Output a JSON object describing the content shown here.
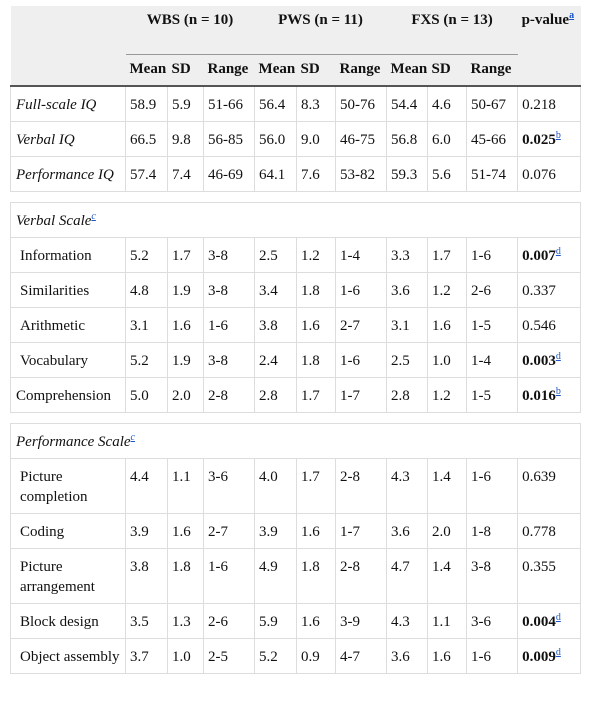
{
  "groups": [
    {
      "label": "WBS (n = 10)"
    },
    {
      "label": "PWS (n = 11)"
    },
    {
      "label": "FXS (n = 13)"
    }
  ],
  "pvalue_header": {
    "label": "p-value",
    "footnote": "a"
  },
  "subheaders": [
    "Mean",
    "SD",
    "Range",
    "Mean",
    "SD",
    "Range",
    "Mean",
    "SD",
    "Range"
  ],
  "rows": [
    {
      "label": "Full-scale IQ",
      "italic": true,
      "indent": false,
      "cells": [
        "58.9",
        "5.9",
        "51-66",
        "56.4",
        "8.3",
        "50-76",
        "54.4",
        "4.6",
        "50-67"
      ],
      "p": "0.218",
      "p_bold": false,
      "p_fn": ""
    },
    {
      "label": "Verbal IQ",
      "italic": true,
      "indent": false,
      "cells": [
        "66.5",
        "9.8",
        "56-85",
        "56.0",
        "9.0",
        "46-75",
        "56.8",
        "6.0",
        "45-66"
      ],
      "p": "0.025",
      "p_bold": true,
      "p_fn": "b"
    },
    {
      "label": "Performance IQ",
      "italic": true,
      "indent": false,
      "cells": [
        "57.4",
        "7.4",
        "46-69",
        "64.1",
        "7.6",
        "53-82",
        "59.3",
        "5.6",
        "51-74"
      ],
      "p": "0.076",
      "p_bold": false,
      "p_fn": ""
    },
    {
      "spacer": true
    },
    {
      "section": "Verbal Scale",
      "footnote": "c"
    },
    {
      "label": "Information",
      "italic": false,
      "indent": true,
      "cells": [
        "5.2",
        "1.7",
        "3-8",
        "2.5",
        "1.2",
        "1-4",
        "3.3",
        "1.7",
        "1-6"
      ],
      "p": "0.007",
      "p_bold": true,
      "p_fn": "d"
    },
    {
      "label": "Similarities",
      "italic": false,
      "indent": true,
      "cells": [
        "4.8",
        "1.9",
        "3-8",
        "3.4",
        "1.8",
        "1-6",
        "3.6",
        "1.2",
        "2-6"
      ],
      "p": "0.337",
      "p_bold": false,
      "p_fn": ""
    },
    {
      "label": "Arithmetic",
      "italic": false,
      "indent": true,
      "cells": [
        "3.1",
        "1.6",
        "1-6",
        "3.8",
        "1.6",
        "2-7",
        "3.1",
        "1.6",
        "1-5"
      ],
      "p": "0.546",
      "p_bold": false,
      "p_fn": ""
    },
    {
      "label": "Vocabulary",
      "italic": false,
      "indent": true,
      "cells": [
        "5.2",
        "1.9",
        "3-8",
        "2.4",
        "1.8",
        "1-6",
        "2.5",
        "1.0",
        "1-4"
      ],
      "p": "0.003",
      "p_bold": true,
      "p_fn": "d"
    },
    {
      "label": "Comprehension",
      "italic": false,
      "indent": false,
      "cells": [
        "5.0",
        "2.0",
        "2-8",
        "2.8",
        "1.7",
        "1-7",
        "2.8",
        "1.2",
        "1-5"
      ],
      "p": "0.016",
      "p_bold": true,
      "p_fn": "b"
    },
    {
      "spacer": true
    },
    {
      "section": "Performance Scale",
      "footnote": "c"
    },
    {
      "label": "Picture completion",
      "italic": false,
      "indent": true,
      "cells": [
        "4.4",
        "1.1",
        "3-6",
        "4.0",
        "1.7",
        "2-8",
        "4.3",
        "1.4",
        "1-6"
      ],
      "p": "0.639",
      "p_bold": false,
      "p_fn": ""
    },
    {
      "label": "Coding",
      "italic": false,
      "indent": true,
      "cells": [
        "3.9",
        "1.6",
        "2-7",
        "3.9",
        "1.6",
        "1-7",
        "3.6",
        "2.0",
        "1-8"
      ],
      "p": "0.778",
      "p_bold": false,
      "p_fn": ""
    },
    {
      "label": "Picture arrangement",
      "italic": false,
      "indent": true,
      "cells": [
        "3.8",
        "1.8",
        "1-6",
        "4.9",
        "1.8",
        "2-8",
        "4.7",
        "1.4",
        "3-8"
      ],
      "p": "0.355",
      "p_bold": false,
      "p_fn": ""
    },
    {
      "label": "Block design",
      "italic": false,
      "indent": true,
      "cells": [
        "3.5",
        "1.3",
        "2-6",
        "5.9",
        "1.6",
        "3-9",
        "4.3",
        "1.1",
        "3-6"
      ],
      "p": "0.004",
      "p_bold": true,
      "p_fn": "d"
    },
    {
      "label": "Object assembly",
      "italic": false,
      "indent": true,
      "cells": [
        "3.7",
        "1.0",
        "2-5",
        "5.2",
        "0.9",
        "4-7",
        "3.6",
        "1.6",
        "1-6"
      ],
      "p": "0.009",
      "p_bold": true,
      "p_fn": "d"
    }
  ]
}
